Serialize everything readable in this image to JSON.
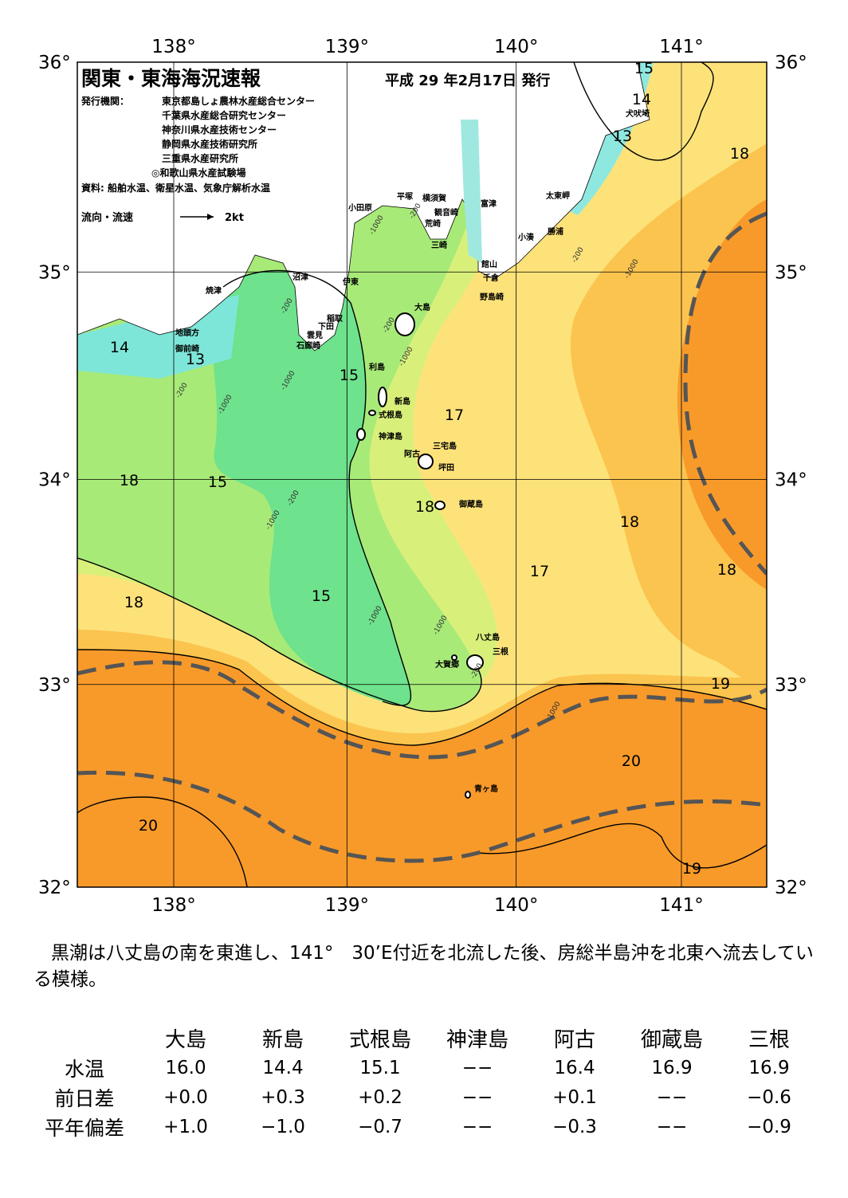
{
  "header": {
    "title": "関東・東海海況速報",
    "date": "平成 29 年2月17日 発行",
    "issuer_label": "発行機関：",
    "issuers": [
      "東京都島しょ農林水産総合センター",
      "千葉県水産総合研究センター",
      "神奈川県水産技術センター",
      "静岡県水産技術研究所",
      "三重県水産研究所",
      "◎和歌山県水産試験場"
    ],
    "source": "資料: 船舶水温、衛星水温、気象庁解析水温",
    "legend_label": "流向・流速",
    "legend_speed": "2kt"
  },
  "map": {
    "lon_ticks": [
      {
        "value": 138,
        "label": "138°"
      },
      {
        "value": 139,
        "label": "139°"
      },
      {
        "value": 140,
        "label": "140°"
      },
      {
        "value": 141,
        "label": "141°"
      }
    ],
    "lat_ticks": [
      {
        "value": 36,
        "label": "36°"
      },
      {
        "value": 35,
        "label": "35°"
      },
      {
        "value": 34,
        "label": "34°"
      },
      {
        "value": 33,
        "label": "33°"
      },
      {
        "value": 32,
        "label": "32°"
      }
    ],
    "places": [
      "犬吠埼",
      "小田原",
      "平塚",
      "横須賀",
      "観音崎",
      "富津",
      "太東岬",
      "荒崎",
      "勝浦",
      "小湊",
      "三崎",
      "館山",
      "千倉",
      "野島崎",
      "沼津",
      "伊東",
      "焼津",
      "大島",
      "稲取",
      "下田",
      "雲見",
      "石廊崎",
      "地頭方",
      "御前崎",
      "利島",
      "新島",
      "式根島",
      "神津島",
      "三宅島",
      "阿古",
      "坪田",
      "御蔵島",
      "八丈島",
      "三根",
      "大賀郷",
      "青ヶ島"
    ],
    "contour_labels": [
      15,
      14,
      13,
      18,
      14,
      13,
      15,
      17,
      18,
      15,
      18,
      18,
      17,
      18,
      18,
      15,
      19,
      20,
      20,
      19
    ],
    "depth_labels": [
      -200,
      -1000,
      -200,
      -1000,
      -200,
      -1000,
      -200,
      -1000,
      -200,
      -1000,
      -200,
      -1000,
      -1000,
      -1000,
      -200,
      -1000
    ]
  },
  "note": "黒潮は八丈島の南を東進し、141°　30’E付近を北流した後、房総半島沖を北東へ流去している模様。",
  "table": {
    "columns": [
      "大島",
      "新島",
      "式根島",
      "神津島",
      "阿古",
      "御蔵島",
      "三根"
    ],
    "rows": [
      [
        "水温",
        "16.0",
        "14.4",
        "15.1",
        "−−",
        "16.4",
        "16.9",
        "16.9"
      ],
      [
        "前日差",
        "+0.0",
        "+0.3",
        "+0.2",
        "−−",
        "+0.1",
        "−−",
        "−0.6"
      ],
      [
        "平年偏差",
        "+1.0",
        "−1.0",
        "−0.7",
        "−−",
        "−0.3",
        "−−",
        "−0.9"
      ]
    ]
  }
}
